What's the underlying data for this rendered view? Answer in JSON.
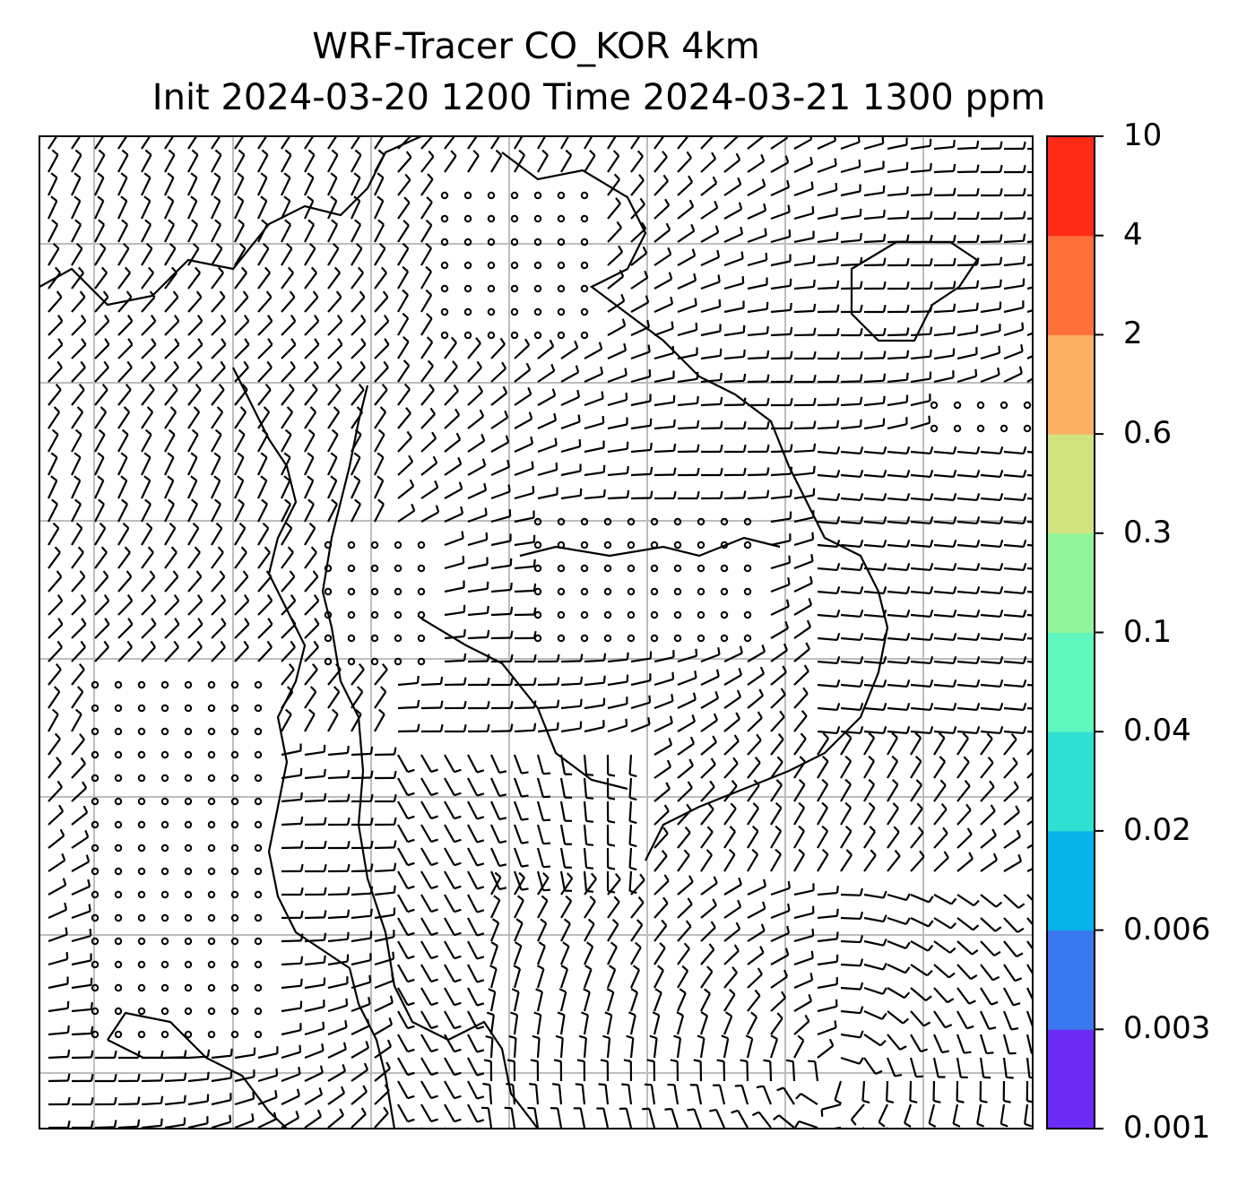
{
  "title": {
    "line1": "WRF-Tracer CO_KOR 4km",
    "line2": "Init 2024-03-20 1200 Time 2024-03-21 1300 ppm"
  },
  "colorbar": {
    "levels": [
      "0.001",
      "0.003",
      "0.006",
      "0.02",
      "0.04",
      "0.1",
      "0.3",
      "0.6",
      "2",
      "4",
      "10"
    ],
    "colors": [
      "#6a2cf5",
      "#3a78f0",
      "#07b4e9",
      "#2ee0d2",
      "#5ef7bd",
      "#8ef59a",
      "#cfe37f",
      "#fbb063",
      "#fe6f3a",
      "#ff2b16"
    ]
  },
  "map": {
    "grid_columns": 7,
    "grid_rows": 7,
    "wind_symbols": "barbs",
    "calm_symbol": "circle"
  }
}
